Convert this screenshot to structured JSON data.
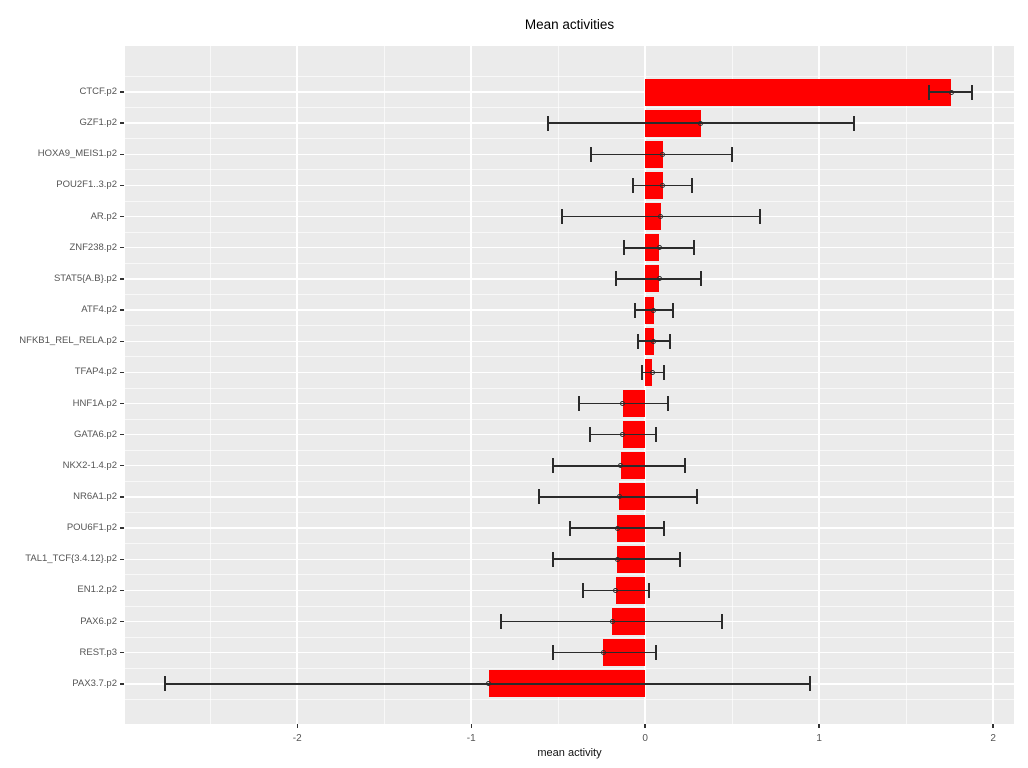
{
  "title": "Mean activities",
  "xlabel": "mean activity",
  "chart_data": {
    "type": "bar",
    "orientation": "horizontal",
    "title": "Mean activities",
    "xlabel": "mean activity",
    "ylabel": "",
    "legend": "none",
    "grid": "on",
    "panel_bg": "#EBEBEB",
    "bar_color": "#FF0000",
    "errorbar_color": "#2B2B2B",
    "grid_color": "#FFFFFF",
    "axis_text_color": "#555555",
    "xlim": [
      -2.99,
      2.12
    ],
    "x_ticks": [
      -2,
      -1,
      0,
      1,
      2
    ],
    "x_tick_labels": [
      "-2",
      "-1",
      "0",
      "1",
      "2"
    ],
    "x_minor_ticks": [
      -2.5,
      -1.5,
      -0.5,
      0.5,
      1.5
    ],
    "categories": [
      "CTCF.p2",
      "GZF1.p2",
      "HOXA9_MEIS1.p2",
      "POU2F1..3.p2",
      "AR.p2",
      "ZNF238.p2",
      "STAT5{A.B}.p2",
      "ATF4.p2",
      "NFKB1_REL_RELA.p2",
      "TFAP4.p2",
      "HNF1A.p2",
      "GATA6.p2",
      "NKX2-1.4.p2",
      "NR6A1.p2",
      "POU6F1.p2",
      "TAL1_TCF{3.4.12}.p2",
      "EN1.2.p2",
      "PAX6.p2",
      "REST.p3",
      "PAX3.7.p2"
    ],
    "series": [
      {
        "name": "mean activity",
        "values": [
          1.76,
          0.32,
          0.1,
          0.1,
          0.09,
          0.08,
          0.08,
          0.05,
          0.05,
          0.04,
          -0.13,
          -0.13,
          -0.14,
          -0.15,
          -0.16,
          -0.16,
          -0.17,
          -0.19,
          -0.24,
          -0.9
        ]
      }
    ],
    "error_low": [
      1.63,
      -0.56,
      -0.31,
      -0.07,
      -0.48,
      -0.12,
      -0.17,
      -0.06,
      -0.04,
      -0.02,
      -0.38,
      -0.32,
      -0.53,
      -0.61,
      -0.43,
      -0.53,
      -0.36,
      -0.83,
      -0.53,
      -2.76
    ],
    "error_high": [
      1.88,
      1.2,
      0.5,
      0.27,
      0.66,
      0.28,
      0.32,
      0.16,
      0.14,
      0.11,
      0.13,
      0.06,
      0.23,
      0.3,
      0.11,
      0.2,
      0.02,
      0.44,
      0.06,
      0.95
    ]
  }
}
